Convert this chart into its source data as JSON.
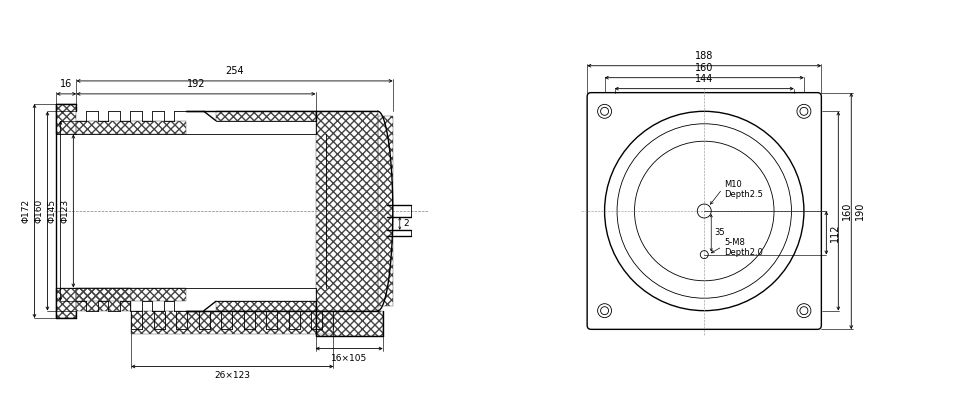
{
  "bg_color": "#ffffff",
  "line_color": "#000000",
  "fig_width": 9.6,
  "fig_height": 4.19,
  "left_view": {
    "label_254": "254",
    "label_192": "192",
    "label_16": "16",
    "label_phi172": "Φ172",
    "label_phi160": "Φ160",
    "label_phi145": "Φ145",
    "label_phi123": "Φ123",
    "label_2": "2",
    "label_16x105": "16×105",
    "label_26x123": "26×123"
  },
  "right_view": {
    "label_188": "188",
    "label_160": "160",
    "label_144": "144",
    "label_112": "112",
    "label_160h": "160",
    "label_190": "190",
    "label_M10": "M10",
    "label_Depth25": "Depth2.5",
    "label_5M8": "5-M8",
    "label_Depth20": "Depth2.0",
    "label_35": "35"
  }
}
